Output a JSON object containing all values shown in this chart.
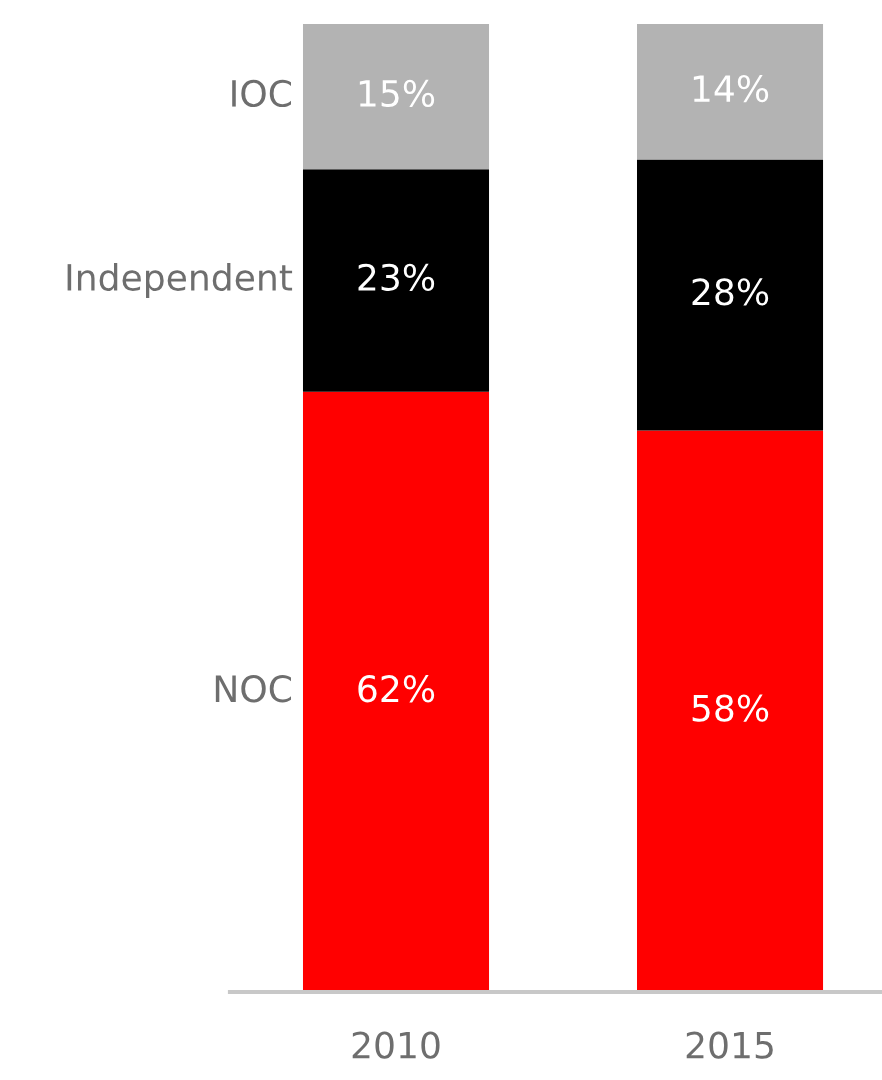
{
  "chart_data": {
    "type": "bar",
    "stacked": true,
    "categories": [
      "2010",
      "2015"
    ],
    "ylim": [
      0,
      100
    ],
    "tick_labels": "x",
    "grid": false,
    "legend": false,
    "series": [
      {
        "name": "NOC",
        "color": "#ff0000",
        "values": [
          62,
          58
        ],
        "value_labels": [
          "62%",
          "58%"
        ]
      },
      {
        "name": "Independent",
        "color": "#000000",
        "values": [
          23,
          28
        ],
        "value_labels": [
          "23%",
          "28%"
        ]
      },
      {
        "name": "IOC",
        "color": "#b3b3b3",
        "values": [
          15,
          14
        ],
        "value_labels": [
          "15%",
          "14%"
        ]
      }
    ]
  }
}
